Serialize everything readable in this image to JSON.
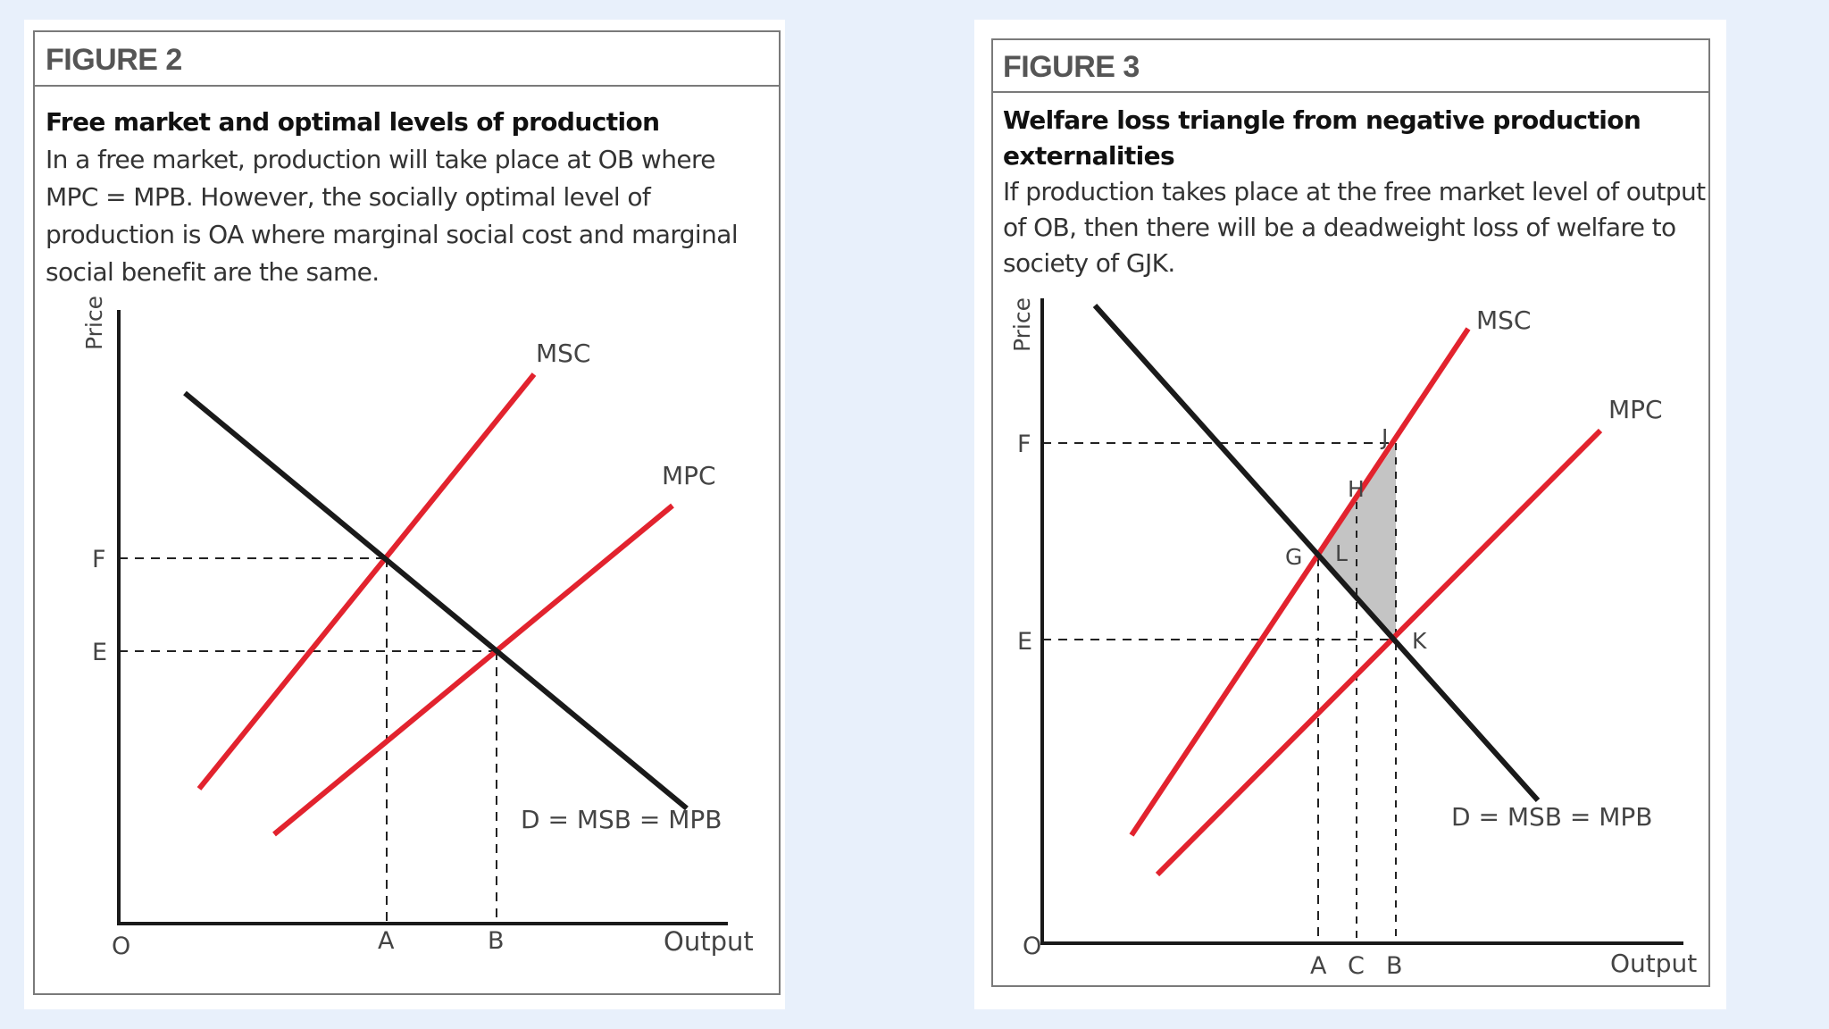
{
  "figure2": {
    "title": "FIGURE 2",
    "heading": "Free market and optimal levels of production",
    "body": "In a free market, production will take place at OB where MPC = MPB. However, the socially optimal level of production is OA where marginal social cost and marginal social benefit are the same.",
    "labels": {
      "y_axis": "Price",
      "x_axis": "Output",
      "origin": "O",
      "msc": "MSC",
      "mpc": "MPC",
      "demand": "D = MSB = MPB",
      "price_f": "F",
      "price_e": "E",
      "qty_a": "A",
      "qty_b": "B"
    }
  },
  "figure3": {
    "title": "FIGURE 3",
    "heading": "Welfare loss triangle from negative production externalities",
    "body": "If production takes place at the free market level of output of OB, then there will be a deadweight loss of welfare to society of GJK.",
    "labels": {
      "y_axis": "Price",
      "x_axis": "Output",
      "origin": "O",
      "msc": "MSC",
      "mpc": "MPC",
      "demand": "D = MSB = MPB",
      "price_f": "F",
      "price_e": "E",
      "qty_a": "A",
      "qty_c": "C",
      "qty_b": "B",
      "point_g": "G",
      "point_h": "H",
      "point_j": "J",
      "point_k": "K",
      "point_l": "L"
    }
  },
  "colors": {
    "background": "#e8f0fb",
    "supply_lines": "#e2232e",
    "demand_line": "#1a1a1a",
    "welfare_loss_fill": "#c4c4c4",
    "frame": "#7a7a7a",
    "title_text": "#555555"
  }
}
